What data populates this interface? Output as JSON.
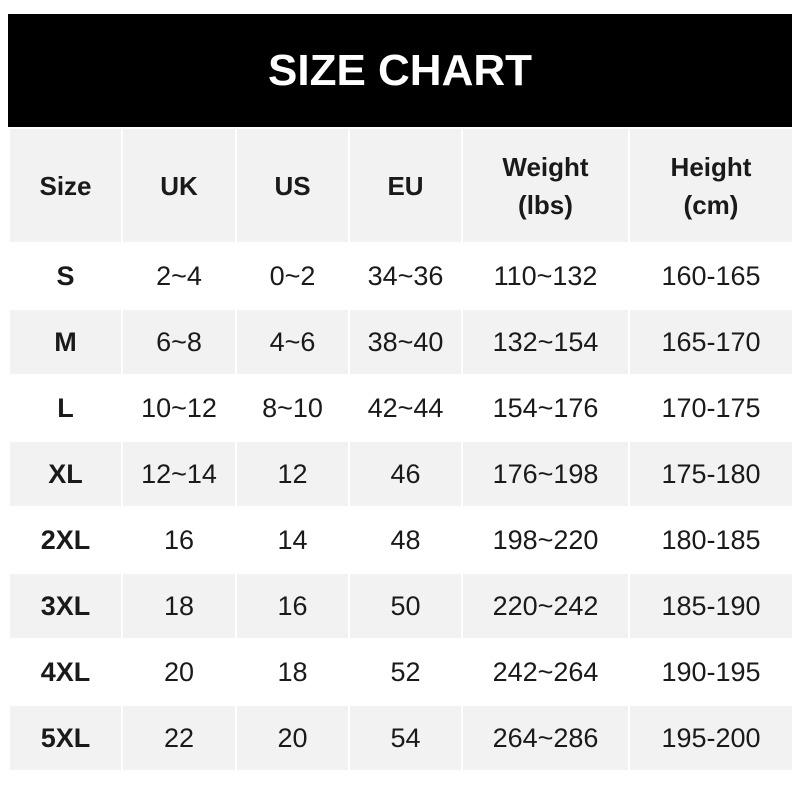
{
  "title": "SIZE CHART",
  "headers": [
    [
      "Size"
    ],
    [
      "UK"
    ],
    [
      "US"
    ],
    [
      "EU"
    ],
    [
      "Weight",
      "(lbs)"
    ],
    [
      "Height",
      "(cm)"
    ]
  ],
  "rows": [
    [
      "S",
      "2~4",
      "0~2",
      "34~36",
      "110~132",
      "160-165"
    ],
    [
      "M",
      "6~8",
      "4~6",
      "38~40",
      "132~154",
      "165-170"
    ],
    [
      "L",
      "10~12",
      "8~10",
      "42~44",
      "154~176",
      "170-175"
    ],
    [
      "XL",
      "12~14",
      "12",
      "46",
      "176~198",
      "175-180"
    ],
    [
      "2XL",
      "16",
      "14",
      "48",
      "198~220",
      "180-185"
    ],
    [
      "3XL",
      "18",
      "16",
      "50",
      "220~242",
      "185-190"
    ],
    [
      "4XL",
      "20",
      "18",
      "52",
      "242~264",
      "190-195"
    ],
    [
      "5XL",
      "22",
      "20",
      "54",
      "264~286",
      "195-200"
    ]
  ],
  "colors": {
    "title_bg": "#000000",
    "header_bg": "#f2f2f2",
    "stripe_bg": "#f2f2f2"
  }
}
